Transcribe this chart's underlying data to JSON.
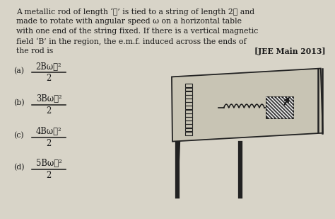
{
  "bg_color": "#d8d4c8",
  "text_color": "#1a1a1a",
  "title_line1": "A metallic rod of length ‘ℓ’ is tied to a string of length 2ℓ and",
  "title_line2": "made to rotate with angular speed ω on a horizontal table",
  "title_line3": "with one end of the string fixed. If there is a vertical magnetic",
  "title_line4": "field ‘B’ in the region, the e.m.f. induced across the ends of",
  "title_line5": "the rod is",
  "ref": "[JEE Main 2013]",
  "options": [
    {
      "label": "(a)",
      "num": "2Bωℓ²",
      "den": "2"
    },
    {
      "label": "(b)",
      "num": "3Bωℓ²",
      "den": "2"
    },
    {
      "label": "(c)",
      "num": "4Bωℓ²",
      "den": "2"
    },
    {
      "label": "(d)",
      "num": "5Bωℓ²",
      "den": "2"
    }
  ],
  "figsize": [
    4.74,
    3.09
  ],
  "dpi": 100
}
